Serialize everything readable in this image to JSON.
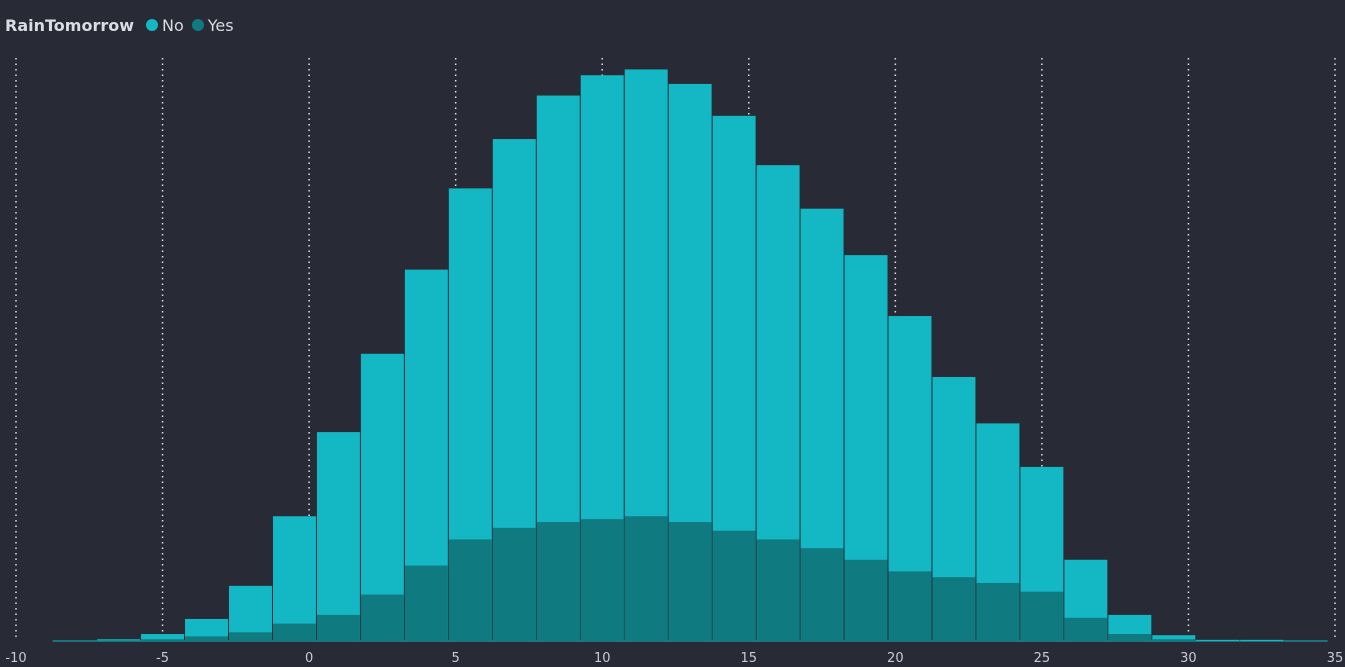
{
  "chart_data": {
    "type": "bar",
    "subtype": "overlapping-histogram",
    "title": "",
    "xlabel": "",
    "ylabel": "",
    "xlim": [
      -10,
      35
    ],
    "x_ticks": [
      -10,
      -5,
      0,
      5,
      10,
      15,
      20,
      25,
      30,
      35
    ],
    "y_axis_visible": false,
    "grid": "vertical dotted",
    "legend": {
      "title": "RainTomorrow",
      "position": "top-left",
      "entries": [
        {
          "name": "No",
          "color": "#14b8c4"
        },
        {
          "name": "Yes",
          "color": "#0f7b80"
        }
      ]
    },
    "bin_centers": [
      -8.0,
      -6.5,
      -5.0,
      -3.5,
      -2.0,
      -0.5,
      1.0,
      2.5,
      4.0,
      5.5,
      7.0,
      8.5,
      10.0,
      11.5,
      13.0,
      14.5,
      16.0,
      17.5,
      19.0,
      20.5,
      22.0,
      23.5,
      25.0,
      26.5,
      28.0,
      29.5,
      31.0,
      32.5,
      34.0
    ],
    "series": [
      {
        "name": "No",
        "color": "#14b8c4",
        "values": [
          0,
          3,
          12,
          38,
          95,
          215,
          360,
          495,
          640,
          780,
          865,
          940,
          975,
          985,
          960,
          905,
          820,
          745,
          665,
          560,
          455,
          375,
          300,
          140,
          45,
          10,
          2,
          2,
          0
        ]
      },
      {
        "name": "Yes",
        "color": "#0f7b80",
        "values": [
          0,
          1,
          3,
          8,
          15,
          30,
          45,
          80,
          130,
          175,
          195,
          205,
          210,
          215,
          205,
          190,
          175,
          160,
          140,
          120,
          110,
          100,
          85,
          40,
          12,
          3,
          0,
          0,
          0
        ]
      }
    ]
  }
}
